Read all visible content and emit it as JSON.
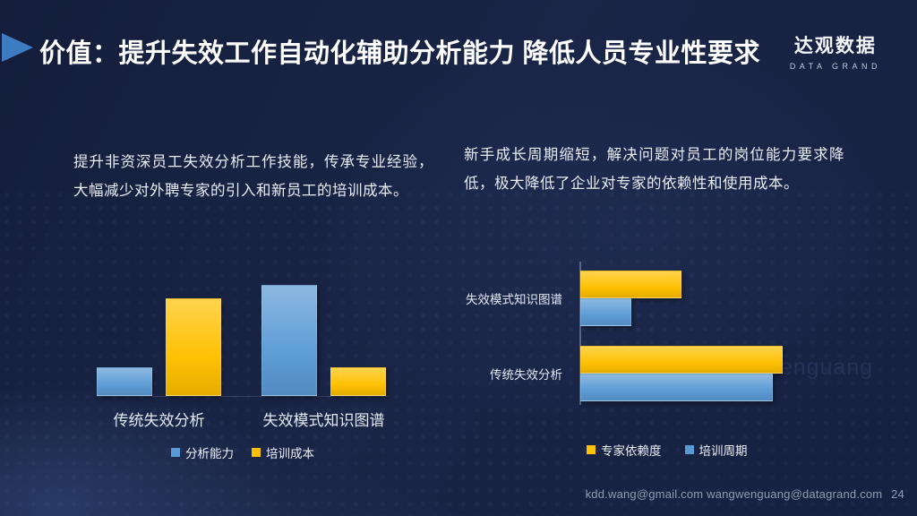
{
  "slide": {
    "title": "价值：提升失效工作自动化辅助分析能力 降低人员专业性要求",
    "logo": {
      "cn": "达观数据",
      "en": "DATA GRAND"
    },
    "paragraph_left": "提升非资深员工失效分析工作技能，传承专业经验，大幅减少对外聘专家的引入和新员工的培训成本。",
    "paragraph_right": "新手成长周期缩短，解决问题对员工的岗位能力要求降低，极大降低了企业对专家的依赖性和使用成本。",
    "watermark": "wangwenguang",
    "footer_emails": "kdd.wang@gmail.com  wangwenguang@datagrand.com",
    "page_number": "24"
  },
  "colors": {
    "background": "#18213F",
    "accent_blue": "#5B9BD5",
    "accent_gold": "#FFC000",
    "title_text": "#FFFFFF",
    "body_text": "#E9EDF4",
    "footer_text": "#939CB0"
  },
  "chart_data": [
    {
      "type": "bar",
      "orientation": "vertical",
      "title": "",
      "xlabel": "",
      "ylabel": "",
      "categories": [
        "传统失效分析",
        "失效模式知识图谱"
      ],
      "series": [
        {
          "name": "分析能力",
          "color": "#5B9BD5",
          "values": [
            1.3,
            5.0
          ]
        },
        {
          "name": "培训成本",
          "color": "#FFC000",
          "values": [
            4.4,
            1.3
          ]
        }
      ],
      "ylim": [
        0,
        5
      ],
      "grid": false,
      "legend_position": "bottom"
    },
    {
      "type": "bar",
      "orientation": "horizontal",
      "title": "",
      "xlabel": "",
      "ylabel": "",
      "categories": [
        "失效模式知识图谱",
        "传统失效分析"
      ],
      "series": [
        {
          "name": "专家依赖度",
          "color": "#FFC000",
          "values": [
            2.5,
            5.0
          ]
        },
        {
          "name": "培训周期",
          "color": "#5B9BD5",
          "values": [
            1.25,
            4.75
          ]
        }
      ],
      "xlim": [
        0,
        5
      ],
      "grid": false,
      "legend_position": "bottom"
    }
  ]
}
